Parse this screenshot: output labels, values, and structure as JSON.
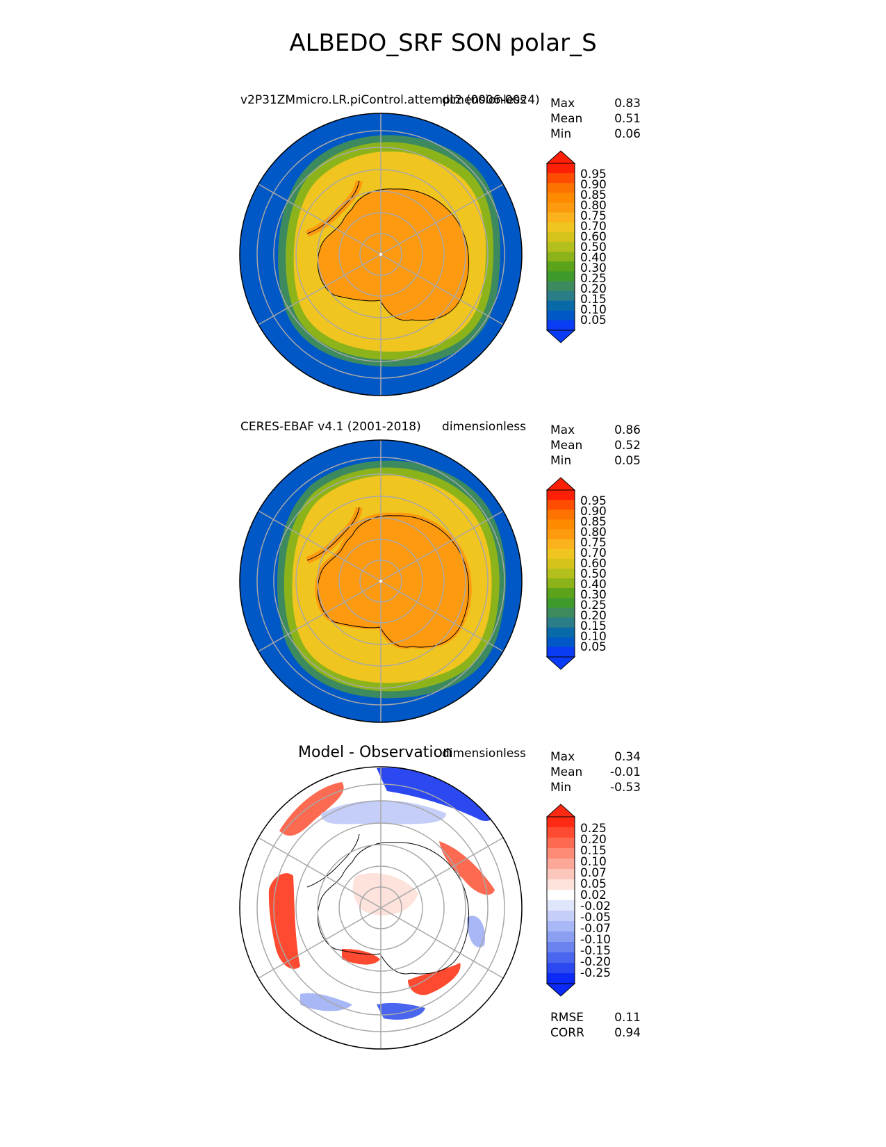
{
  "title": "ALBEDO_SRF SON polar_S",
  "panels": [
    {
      "left_title": "v2P31ZMmicro.LR.piControl.attempt2 (0006-0024)",
      "center_title": "",
      "units": "dimensionless",
      "stats": [
        {
          "label": "Max",
          "value": "0.83"
        },
        {
          "label": "Mean",
          "value": "0.51"
        },
        {
          "label": "Min",
          "value": "0.06"
        }
      ],
      "colorbar_ticks": [
        "0.95",
        "0.90",
        "0.85",
        "0.80",
        "0.75",
        "0.70",
        "0.60",
        "0.50",
        "0.40",
        "0.30",
        "0.25",
        "0.20",
        "0.15",
        "0.10",
        "0.05"
      ],
      "colorbar_colors": [
        "#fe1f07",
        "#fe4d00",
        "#fe7300",
        "#fe8a00",
        "#fe9a10",
        "#fbb21c",
        "#f0c51f",
        "#d5c31c",
        "#b3c01b",
        "#8cb41a",
        "#5aa31a",
        "#3f9a2c",
        "#3d8a5e",
        "#2b7d88",
        "#0a6aa8",
        "#0058c6",
        "#0a3cf5"
      ],
      "extend_top_color": "#fe1f07",
      "extend_bottom_color": "#0a3cf5"
    },
    {
      "left_title": "CERES-EBAF v4.1 (2001-2018)",
      "center_title": "",
      "units": "dimensionless",
      "stats": [
        {
          "label": "Max",
          "value": "0.86"
        },
        {
          "label": "Mean",
          "value": "0.52"
        },
        {
          "label": "Min",
          "value": "0.05"
        }
      ],
      "colorbar_ticks": [
        "0.95",
        "0.90",
        "0.85",
        "0.80",
        "0.75",
        "0.70",
        "0.60",
        "0.50",
        "0.40",
        "0.30",
        "0.25",
        "0.20",
        "0.15",
        "0.10",
        "0.05"
      ],
      "colorbar_colors": [
        "#fe1f07",
        "#fe4d00",
        "#fe7300",
        "#fe8a00",
        "#fe9a10",
        "#fbb21c",
        "#f0c51f",
        "#d5c31c",
        "#b3c01b",
        "#8cb41a",
        "#5aa31a",
        "#3f9a2c",
        "#3d8a5e",
        "#2b7d88",
        "#0a6aa8",
        "#0058c6",
        "#0a3cf5"
      ],
      "extend_top_color": "#fe1f07",
      "extend_bottom_color": "#0a3cf5"
    },
    {
      "left_title": "",
      "center_title": "Model - Observation",
      "units": "dimensionless",
      "stats": [
        {
          "label": "Max",
          "value": "0.34"
        },
        {
          "label": "Mean",
          "value": "-0.01"
        },
        {
          "label": "Min",
          "value": "-0.53"
        }
      ],
      "colorbar_ticks": [
        "0.25",
        "0.20",
        "0.15",
        "0.10",
        "0.07",
        "0.05",
        "0.02",
        "-0.02",
        "-0.05",
        "-0.07",
        "-0.10",
        "-0.15",
        "-0.20",
        "-0.25"
      ],
      "colorbar_colors": [
        "#fe2a14",
        "#fe4a30",
        "#fd6a52",
        "#fc8a74",
        "#fba898",
        "#fcc6ba",
        "#fde3dc",
        "#ffffff",
        "#dfe5fb",
        "#c4cef8",
        "#a8b7f5",
        "#8a9ef2",
        "#6b83ef",
        "#4b66ee",
        "#2c48f0",
        "#0b2af6"
      ],
      "extend_top_color": "#fe2a14",
      "extend_bottom_color": "#0b2af6",
      "metrics": [
        {
          "label": "RMSE",
          "value": "0.11"
        },
        {
          "label": "CORR",
          "value": "0.94"
        }
      ]
    }
  ],
  "chart_data": [
    {
      "type": "heatmap",
      "projection": "south-polar-stereographic",
      "title": "v2P31ZMmicro.LR.piControl.attempt2 (0006-0024)",
      "units": "dimensionless",
      "levels": [
        0.05,
        0.1,
        0.15,
        0.2,
        0.25,
        0.3,
        0.4,
        0.5,
        0.6,
        0.7,
        0.75,
        0.8,
        0.85,
        0.9,
        0.95
      ],
      "stats": {
        "max": 0.83,
        "mean": 0.51,
        "min": 0.06
      },
      "zonal_profile": [
        {
          "lat": -90,
          "value": 0.82
        },
        {
          "lat": -80,
          "value": 0.8
        },
        {
          "lat": -70,
          "value": 0.72
        },
        {
          "lat": -65,
          "value": 0.66
        },
        {
          "lat": -60,
          "value": 0.4
        },
        {
          "lat": -55,
          "value": 0.12
        },
        {
          "lat": -50,
          "value": 0.07
        }
      ]
    },
    {
      "type": "heatmap",
      "projection": "south-polar-stereographic",
      "title": "CERES-EBAF v4.1 (2001-2018)",
      "units": "dimensionless",
      "levels": [
        0.05,
        0.1,
        0.15,
        0.2,
        0.25,
        0.3,
        0.4,
        0.5,
        0.6,
        0.7,
        0.75,
        0.8,
        0.85,
        0.9,
        0.95
      ],
      "stats": {
        "max": 0.86,
        "mean": 0.52,
        "min": 0.05
      },
      "zonal_profile": [
        {
          "lat": -90,
          "value": 0.8
        },
        {
          "lat": -80,
          "value": 0.79
        },
        {
          "lat": -70,
          "value": 0.74
        },
        {
          "lat": -65,
          "value": 0.7
        },
        {
          "lat": -60,
          "value": 0.45
        },
        {
          "lat": -55,
          "value": 0.14
        },
        {
          "lat": -50,
          "value": 0.07
        }
      ]
    },
    {
      "type": "heatmap",
      "projection": "south-polar-stereographic",
      "title": "Model - Observation",
      "units": "dimensionless",
      "levels": [
        -0.25,
        -0.2,
        -0.15,
        -0.1,
        -0.07,
        -0.05,
        -0.02,
        0.02,
        0.05,
        0.07,
        0.1,
        0.15,
        0.2,
        0.25
      ],
      "stats": {
        "max": 0.34,
        "mean": -0.01,
        "min": -0.53
      },
      "metrics": {
        "rmse": 0.11,
        "corr": 0.94
      }
    }
  ]
}
